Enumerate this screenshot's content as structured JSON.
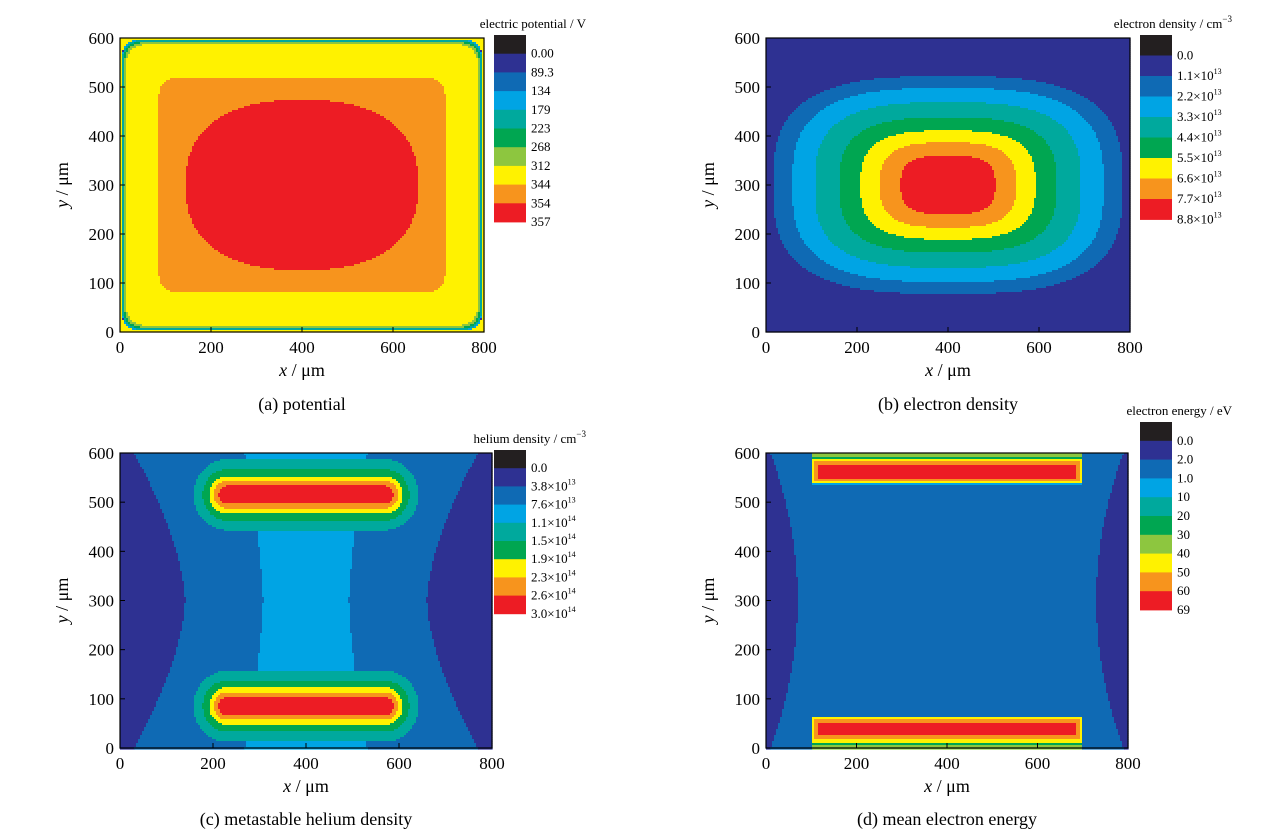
{
  "colors": {
    "scale": [
      "#231f20",
      "#2e3192",
      "#0f6ab4",
      "#00a4e4",
      "#00a99d",
      "#00a651",
      "#8dc63f",
      "#fff200",
      "#f7941d",
      "#ed1c24"
    ]
  },
  "chart_data": [
    {
      "type": "heatmap",
      "caption": "(a) potential",
      "xlabel_var": "x",
      "xlabel_unit": " / μm",
      "ylabel_var": "y",
      "ylabel_unit": " / μm",
      "xlim": [
        0,
        800
      ],
      "ylim": [
        0,
        600
      ],
      "xticks": [
        "0",
        "200",
        "400",
        "600",
        "800"
      ],
      "yticks": [
        "0",
        "100",
        "200",
        "300",
        "400",
        "500",
        "600"
      ],
      "colorbar_title": "electric potential / V",
      "levels": [
        "0.00",
        "89.3",
        "134",
        "179",
        "223",
        "268",
        "312",
        "344",
        "354",
        "357"
      ],
      "level_colors": [
        "#231f20",
        "#2e3192",
        "#0f6ab4",
        "#00a4e4",
        "#00a99d",
        "#00a651",
        "#8dc63f",
        "#fff200",
        "#f7941d",
        "#ed1c24"
      ],
      "field": "potential"
    },
    {
      "type": "heatmap",
      "caption": "(b) electron density",
      "xlabel_var": "x",
      "xlabel_unit": " / μm",
      "ylabel_var": "y",
      "ylabel_unit": " / μm",
      "xlim": [
        0,
        800
      ],
      "ylim": [
        0,
        600
      ],
      "xticks": [
        "0",
        "200",
        "400",
        "600",
        "800"
      ],
      "yticks": [
        "0",
        "100",
        "200",
        "300",
        "400",
        "500",
        "600"
      ],
      "colorbar_title": "electron density / cm",
      "colorbar_title_exp": "−3",
      "levels": [
        {
          "m": "0.0"
        },
        {
          "m": "1.1",
          "e": "13"
        },
        {
          "m": "2.2",
          "e": "13"
        },
        {
          "m": "3.3",
          "e": "13"
        },
        {
          "m": "4.4",
          "e": "13"
        },
        {
          "m": "5.5",
          "e": "13"
        },
        {
          "m": "6.6",
          "e": "13"
        },
        {
          "m": "7.7",
          "e": "13"
        },
        {
          "m": "8.8",
          "e": "13"
        }
      ],
      "level_colors": [
        "#231f20",
        "#2e3192",
        "#0f6ab4",
        "#00a4e4",
        "#00a99d",
        "#00a651",
        "#fff200",
        "#f7941d",
        "#ed1c24"
      ],
      "field": "edensity"
    },
    {
      "type": "heatmap",
      "caption": "(c) metastable helium density",
      "xlabel_var": "x",
      "xlabel_unit": " / μm",
      "ylabel_var": "y",
      "ylabel_unit": " / μm",
      "xlim": [
        0,
        800
      ],
      "ylim": [
        0,
        600
      ],
      "xticks": [
        "0",
        "200",
        "400",
        "600",
        "800"
      ],
      "yticks": [
        "0",
        "100",
        "200",
        "300",
        "400",
        "500",
        "600"
      ],
      "colorbar_title": "helium density / cm",
      "colorbar_title_exp": "−3",
      "levels": [
        {
          "m": "0.0"
        },
        {
          "m": "3.8",
          "e": "13"
        },
        {
          "m": "7.6",
          "e": "13"
        },
        {
          "m": "1.1",
          "e": "14"
        },
        {
          "m": "1.5",
          "e": "14"
        },
        {
          "m": "1.9",
          "e": "14"
        },
        {
          "m": "2.3",
          "e": "14"
        },
        {
          "m": "2.6",
          "e": "14"
        },
        {
          "m": "3.0",
          "e": "14"
        }
      ],
      "level_colors": [
        "#231f20",
        "#2e3192",
        "#0f6ab4",
        "#00a4e4",
        "#00a99d",
        "#00a651",
        "#fff200",
        "#f7941d",
        "#ed1c24"
      ],
      "field": "helium"
    },
    {
      "type": "heatmap",
      "caption": "(d) mean electron energy",
      "xlabel_var": "x",
      "xlabel_unit": " / μm",
      "ylabel_var": "y",
      "ylabel_unit": " / μm",
      "xlim": [
        0,
        800
      ],
      "ylim": [
        0,
        600
      ],
      "xticks": [
        "0",
        "200",
        "400",
        "600",
        "800"
      ],
      "yticks": [
        "0",
        "100",
        "200",
        "300",
        "400",
        "500",
        "600"
      ],
      "colorbar_title": "electron energy / eV",
      "levels": [
        "0.0",
        "2.0",
        "1.0",
        "10",
        "20",
        "30",
        "40",
        "50",
        "60",
        "69"
      ],
      "level_colors": [
        "#231f20",
        "#2e3192",
        "#0f6ab4",
        "#00a4e4",
        "#00a99d",
        "#00a651",
        "#8dc63f",
        "#fff200",
        "#f7941d",
        "#ed1c24"
      ],
      "field": "energy"
    }
  ]
}
